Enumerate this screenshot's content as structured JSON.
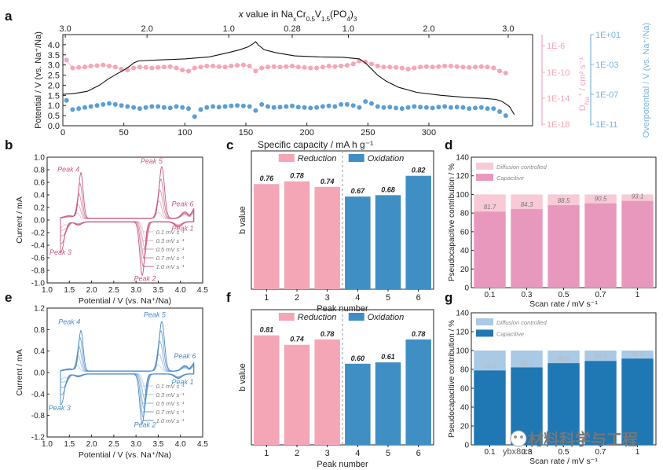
{
  "colors": {
    "pink": "#f4a6b6",
    "pink_dark": "#c75a7b",
    "pink_light": "#f7cad6",
    "mauve": "#e898bd",
    "blue": "#3f8fc4",
    "blue_light": "#a9c9e4",
    "blue_axis": "#7eb4dc",
    "axis": "#222222"
  },
  "watermark": {
    "text": "材料科学与工程",
    "url": "ybx8.cn"
  },
  "chart_data": [
    {
      "panel": "a",
      "type": "line",
      "xlabel": "",
      "top_axis_label": {
        "prefix": "x",
        "rest": " value in Na",
        "sub1": "x",
        "mid1": "Cr",
        "sub2": "0.5",
        "mid2": "V",
        "sub3": "1.5",
        "mid3": "(PO",
        "sub4": "4",
        "end": ")",
        "sub5": "3"
      },
      "top_ticks": [
        "3.0",
        "2.0",
        "1.0",
        "0.28",
        "1.0",
        "2.0",
        "3.0"
      ],
      "top_tick_x": [
        2,
        69,
        136,
        188,
        234,
        300,
        365
      ],
      "xlim": [
        0,
        385
      ],
      "x_ticks": [
        0,
        50,
        100,
        150,
        200,
        250,
        300
      ],
      "ylabel": "Potential / V (vs. Na⁺/Na)",
      "ylim": [
        0,
        4.5
      ],
      "y_ticks": [
        "0.0",
        "0.5",
        "1.0",
        "1.5",
        "2.0",
        "2.5",
        "3.0",
        "3.5",
        "4.0"
      ],
      "right1_label_main": "D",
      "right1_label_sub": "Na",
      "right1_label_sup": "+",
      "right1_label_rest": " / cm² s⁻¹",
      "right1_ticks": [
        "1E-6",
        "1E-10",
        "1E-14",
        "1E-18"
      ],
      "right2_label": "Overpotential / V (vs. Na⁺/Na)",
      "right2_ticks": [
        "1E+01",
        "1E-03",
        "1E-07",
        "1E-11"
      ],
      "potential": [
        [
          0,
          1.55
        ],
        [
          10,
          1.6
        ],
        [
          20,
          1.7
        ],
        [
          30,
          2.0
        ],
        [
          37,
          2.3
        ],
        [
          44,
          2.55
        ],
        [
          50,
          2.75
        ],
        [
          55,
          2.95
        ],
        [
          58,
          3.1
        ],
        [
          62,
          3.2
        ],
        [
          80,
          3.25
        ],
        [
          100,
          3.3
        ],
        [
          120,
          3.4
        ],
        [
          135,
          3.6
        ],
        [
          145,
          3.75
        ],
        [
          152,
          3.9
        ],
        [
          156,
          4.05
        ],
        [
          158,
          4.15
        ],
        [
          160,
          4.0
        ],
        [
          165,
          3.75
        ],
        [
          175,
          3.6
        ],
        [
          190,
          3.45
        ],
        [
          210,
          3.4
        ],
        [
          230,
          3.38
        ],
        [
          243,
          3.3
        ],
        [
          248,
          3.1
        ],
        [
          253,
          2.8
        ],
        [
          258,
          2.5
        ],
        [
          265,
          2.2
        ],
        [
          275,
          1.9
        ],
        [
          290,
          1.65
        ],
        [
          310,
          1.5
        ],
        [
          330,
          1.4
        ],
        [
          345,
          1.35
        ],
        [
          355,
          1.3
        ],
        [
          360,
          1.2
        ],
        [
          366,
          0.95
        ],
        [
          370,
          0.55
        ]
      ],
      "diffusion": {
        "x": [
          3,
          8,
          13,
          18,
          23,
          28,
          33,
          38,
          43,
          48,
          53,
          58,
          63,
          68,
          73,
          78,
          83,
          88,
          93,
          98,
          103,
          108,
          113,
          118,
          123,
          128,
          133,
          138,
          143,
          148,
          153,
          158,
          163,
          168,
          173,
          178,
          183,
          188,
          193,
          198,
          203,
          208,
          213,
          218,
          223,
          228,
          233,
          238,
          243,
          248,
          253,
          258,
          263,
          268,
          273,
          278,
          283,
          288,
          293,
          298,
          303,
          308,
          313,
          318,
          323,
          328,
          333,
          338,
          343,
          348,
          353,
          358,
          363
        ],
        "y": [
          3.25,
          2.85,
          2.88,
          2.9,
          2.95,
          2.97,
          3.0,
          2.95,
          2.9,
          2.8,
          2.75,
          2.85,
          2.9,
          2.88,
          2.85,
          2.88,
          2.9,
          2.92,
          2.85,
          2.75,
          2.7,
          2.85,
          2.9,
          2.95,
          2.95,
          2.92,
          2.9,
          2.95,
          2.98,
          3.0,
          2.95,
          2.7,
          2.85,
          2.9,
          2.92,
          2.9,
          2.92,
          2.95,
          2.9,
          2.88,
          2.85,
          2.85,
          2.9,
          2.95,
          2.92,
          2.95,
          2.98,
          3.05,
          3.2,
          3.15,
          3.05,
          2.95,
          2.9,
          2.9,
          2.88,
          2.85,
          2.8,
          2.85,
          2.9,
          2.92,
          2.9,
          2.92,
          2.95,
          2.95,
          2.92,
          2.9,
          2.88,
          2.9,
          2.92,
          2.9,
          2.85,
          2.7,
          2.6
        ]
      },
      "overpotential": {
        "x": [
          3,
          8,
          13,
          18,
          23,
          28,
          33,
          38,
          43,
          48,
          53,
          58,
          63,
          68,
          73,
          78,
          83,
          88,
          93,
          98,
          103,
          108,
          113,
          118,
          123,
          128,
          133,
          138,
          143,
          148,
          153,
          158,
          163,
          168,
          173,
          178,
          183,
          188,
          193,
          198,
          203,
          208,
          213,
          218,
          223,
          228,
          233,
          238,
          243,
          248,
          253,
          258,
          263,
          268,
          273,
          278,
          283,
          288,
          293,
          298,
          303,
          308,
          313,
          318,
          323,
          328,
          333,
          338,
          343,
          348,
          353,
          358,
          363
        ],
        "y": [
          1.25,
          0.8,
          0.85,
          0.9,
          0.95,
          1.0,
          1.05,
          1.1,
          1.05,
          1.0,
          0.95,
          0.9,
          0.85,
          0.9,
          0.95,
          0.95,
          0.9,
          0.88,
          0.95,
          0.9,
          0.85,
          0.45,
          0.8,
          0.9,
          0.95,
          0.92,
          0.95,
          0.98,
          1.0,
          0.98,
          0.95,
          0.75,
          1.05,
          0.95,
          0.9,
          0.92,
          0.95,
          0.98,
          0.92,
          0.9,
          0.88,
          0.9,
          0.95,
          0.98,
          0.95,
          1.05,
          1.05,
          1.0,
          0.9,
          1.2,
          1.1,
          0.95,
          0.9,
          0.92,
          0.88,
          0.85,
          0.9,
          0.95,
          0.92,
          0.9,
          0.88,
          0.92,
          0.95,
          0.9,
          0.92,
          0.9,
          0.85,
          0.88,
          0.9,
          0.85,
          0.85,
          0.7,
          0.5
        ]
      }
    },
    {
      "panel": "b",
      "type": "line",
      "xlabel": "Potential / V (vs. Na⁺/Na)",
      "ylabel": "Current / mA",
      "xlim": [
        1.0,
        4.5
      ],
      "ylim": [
        -1.0,
        1.0
      ],
      "x_ticks": [
        "1.0",
        "1.5",
        "2.0",
        "2.5",
        "3.0",
        "3.5",
        "4.0",
        "4.5"
      ],
      "y_ticks": [
        "-1.0",
        "-0.8",
        "-0.6",
        "-0.4",
        "-0.2",
        "0.0",
        "0.2",
        "0.4",
        "0.6",
        "0.8",
        "1.0"
      ],
      "peaks": [
        {
          "label": "Peak 4",
          "x": 1.48,
          "y": 0.77
        },
        {
          "label": "Peak 5",
          "x": 3.35,
          "y": 0.9
        },
        {
          "label": "Peak 6",
          "x": 4.05,
          "y": 0.22
        },
        {
          "label": "Peak 1",
          "x": 4.05,
          "y": -0.17
        },
        {
          "label": "Peak 3",
          "x": 1.3,
          "y": -0.55
        },
        {
          "label": "Peak 2",
          "x": 3.2,
          "y": -0.97
        }
      ],
      "legend": [
        "0.1 mV s⁻¹",
        "0.3 mV s⁻¹",
        "0.5 mV s⁻¹",
        "0.7 mV s⁻¹",
        "1.0 mV s⁻¹"
      ],
      "cv": {
        "ox_peak1": [
          0.08,
          0.22,
          0.38,
          0.55,
          0.72
        ],
        "ox_peak2": [
          0.1,
          0.28,
          0.45,
          0.62,
          0.82
        ],
        "red_peak1": [
          -0.28,
          -0.43,
          -0.58,
          -0.7,
          -0.85
        ],
        "red_peak2": [
          -0.06,
          -0.12,
          -0.18,
          -0.25,
          -0.33
        ]
      }
    },
    {
      "panel": "c",
      "type": "bar",
      "title": "Specific capacity / mA h g⁻¹",
      "xlabel": "Peak number",
      "ylabel": "b value",
      "categories": [
        "1",
        "2",
        "3",
        "4",
        "5",
        "6"
      ],
      "values": [
        0.76,
        0.78,
        0.74,
        0.67,
        0.68,
        0.82
      ],
      "labels": [
        "0.76",
        "0.78",
        "0.74",
        "0.67",
        "0.68",
        "0.82"
      ],
      "groups": [
        "Reduction",
        "Oxidation"
      ],
      "ylim": [
        0,
        1.0
      ]
    },
    {
      "panel": "d",
      "type": "bar",
      "xlabel": "Scan rate / mV s⁻¹",
      "ylabel": "Pseudocapacitive contribution / %",
      "categories": [
        "0.1",
        "0.3",
        "0.5",
        "0.7",
        "1"
      ],
      "values": [
        81.7,
        84.3,
        88.5,
        90.5,
        93.1
      ],
      "labels": [
        "81.7",
        "84.3",
        "88.5",
        "90.5",
        "93.1"
      ],
      "legend": [
        "Diffusion controlled",
        "Capacitive"
      ],
      "ylim": [
        0,
        140
      ],
      "y_ticks": [
        "0",
        "20",
        "40",
        "60",
        "80",
        "100",
        "120",
        "140"
      ]
    },
    {
      "panel": "e",
      "type": "line",
      "xlabel": "Potential / V (vs. Na⁺/Na)",
      "ylabel": "Current / mA",
      "xlim": [
        1.0,
        4.5
      ],
      "ylim": [
        -1.2,
        1.2
      ],
      "x_ticks": [
        "1.0",
        "1.5",
        "2.0",
        "2.5",
        "3.0",
        "3.5",
        "4.0",
        "4.5"
      ],
      "y_ticks": [
        "-1.2",
        "-0.8",
        "-0.4",
        "0.0",
        "0.4",
        "0.8",
        "1.2"
      ],
      "peaks": [
        {
          "label": "Peak 4",
          "x": 1.5,
          "y": 0.9
        },
        {
          "label": "Peak 5",
          "x": 3.42,
          "y": 1.03
        },
        {
          "label": "Peak 6",
          "x": 4.1,
          "y": 0.26
        },
        {
          "label": "Peak 1",
          "x": 4.05,
          "y": -0.22
        },
        {
          "label": "Peak 3",
          "x": 1.28,
          "y": -0.7
        },
        {
          "label": "Peak 2",
          "x": 3.2,
          "y": -1.02
        }
      ],
      "legend": [
        "0.1 mV s⁻¹",
        "0.3 mV s⁻¹",
        "0.5 mV s⁻¹",
        "0.7 mV s⁻¹",
        "1.0 mV s⁻¹"
      ],
      "cv": {
        "ox_peak1": [
          0.1,
          0.28,
          0.45,
          0.62,
          0.75
        ],
        "ox_peak2": [
          0.12,
          0.32,
          0.55,
          0.75,
          0.92
        ],
        "red_peak1": [
          -0.32,
          -0.5,
          -0.65,
          -0.8,
          -0.92
        ],
        "red_peak2": [
          -0.08,
          -0.15,
          -0.22,
          -0.3,
          -0.42
        ]
      }
    },
    {
      "panel": "f",
      "type": "bar",
      "xlabel": "Peak number",
      "ylabel": "b value",
      "categories": [
        "1",
        "2",
        "3",
        "4",
        "5",
        "6"
      ],
      "values": [
        0.81,
        0.74,
        0.78,
        0.6,
        0.61,
        0.78
      ],
      "labels": [
        "0.81",
        "0.74",
        "0.78",
        "0.60",
        "0.61",
        "0.78"
      ],
      "groups": [
        "Reduction",
        "Oxidation"
      ],
      "ylim": [
        0,
        1.0
      ]
    },
    {
      "panel": "g",
      "type": "bar",
      "xlabel": "Scan rate / mV s⁻¹",
      "ylabel": "Pseudocapacitive contribution / %",
      "categories": [
        "0.1",
        "0.3",
        "0.5",
        "0.7",
        "1"
      ],
      "values": [
        78.9,
        82.1,
        86.6,
        89.0,
        91.5
      ],
      "labels": [
        "78.9",
        "82.1",
        "86.6",
        "89.0",
        "91.5"
      ],
      "legend": [
        "Diffusion controlled",
        "Capacitive"
      ],
      "ylim": [
        0,
        140
      ],
      "y_ticks": [
        "0",
        "20",
        "40",
        "60",
        "80",
        "100",
        "120",
        "140"
      ]
    }
  ]
}
